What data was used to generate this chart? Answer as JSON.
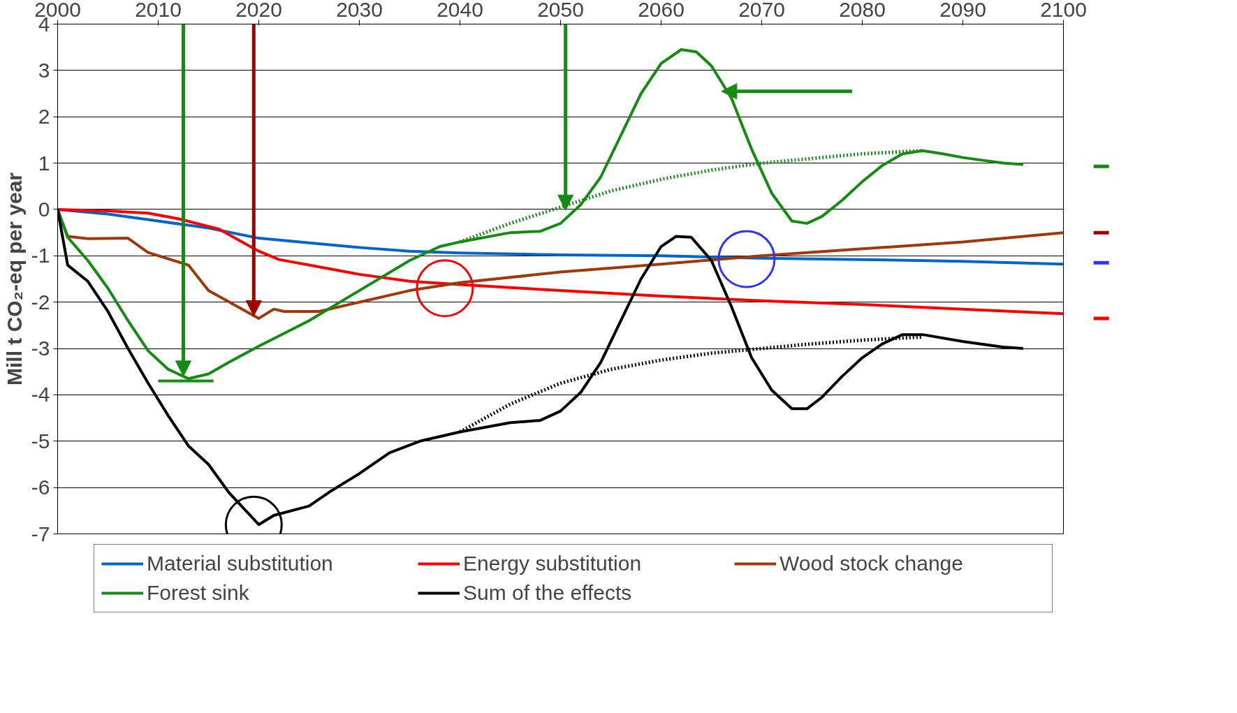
{
  "chart_data": {
    "type": "line",
    "ylabel": "Mill t CO₂-eq per year",
    "xlim": [
      2000,
      2100
    ],
    "xticks": [
      2000,
      2010,
      2020,
      2030,
      2040,
      2050,
      2060,
      2070,
      2080,
      2090,
      2100
    ],
    "ylim": [
      -7,
      4
    ],
    "yticks": [
      -7,
      -6,
      -5,
      -4,
      -3,
      -2,
      -1,
      0,
      1,
      2,
      3,
      4
    ],
    "grid": "y",
    "legend": "bottom",
    "line_style": "solid",
    "marker": "none",
    "series": [
      {
        "name": "Material substitution",
        "color": "#0066cc",
        "x": [
          2000,
          2005,
          2010,
          2015,
          2020,
          2025,
          2030,
          2035,
          2040,
          2050,
          2060,
          2070,
          2080,
          2090,
          2100
        ],
        "values": [
          0,
          -0.1,
          -0.25,
          -0.4,
          -0.62,
          -0.72,
          -0.82,
          -0.9,
          -0.94,
          -0.98,
          -1.0,
          -1.05,
          -1.08,
          -1.12,
          -1.18
        ]
      },
      {
        "name": "Energy substitution",
        "color": "#ff0000",
        "x": [
          2000,
          2005,
          2009,
          2012,
          2016,
          2020,
          2022,
          2025,
          2030,
          2035,
          2040,
          2050,
          2060,
          2070,
          2080,
          2090,
          2100
        ],
        "values": [
          0,
          -0.03,
          -0.08,
          -0.2,
          -0.42,
          -0.9,
          -1.08,
          -1.2,
          -1.4,
          -1.55,
          -1.62,
          -1.75,
          -1.87,
          -1.97,
          -2.05,
          -2.15,
          -2.25
        ]
      },
      {
        "name": "Wood stock change",
        "color": "#a0380a",
        "x": [
          2000,
          2001,
          2003,
          2007,
          2009,
          2013,
          2015,
          2020,
          2021.5,
          2022.5,
          2026,
          2030,
          2035,
          2040,
          2050,
          2060,
          2070,
          2080,
          2090,
          2100
        ],
        "values": [
          0,
          -0.58,
          -0.63,
          -0.62,
          -0.93,
          -1.2,
          -1.75,
          -2.35,
          -2.15,
          -2.2,
          -2.2,
          -2.0,
          -1.75,
          -1.58,
          -1.35,
          -1.18,
          -1.0,
          -0.85,
          -0.7,
          -0.5
        ]
      },
      {
        "name": "Forest sink",
        "color": "#148c14",
        "x": [
          2000,
          2001,
          2003,
          2005,
          2007,
          2009,
          2011,
          2013,
          2015,
          2017,
          2020,
          2025,
          2030,
          2035,
          2038,
          2040,
          2045,
          2048,
          2050,
          2052,
          2054,
          2056,
          2058,
          2060,
          2062,
          2063.5,
          2065,
          2067,
          2069,
          2071,
          2073,
          2074.5,
          2076,
          2078,
          2080,
          2082,
          2084,
          2086,
          2088,
          2090,
          2094,
          2096
        ],
        "values": [
          0,
          -0.6,
          -1.1,
          -1.7,
          -2.4,
          -3.05,
          -3.45,
          -3.65,
          -3.55,
          -3.3,
          -2.95,
          -2.4,
          -1.75,
          -1.1,
          -0.8,
          -0.7,
          -0.5,
          -0.47,
          -0.3,
          0.1,
          0.7,
          1.6,
          2.5,
          3.15,
          3.45,
          3.4,
          3.1,
          2.4,
          1.3,
          0.35,
          -0.25,
          -0.3,
          -0.15,
          0.2,
          0.6,
          0.95,
          1.2,
          1.27,
          1.2,
          1.12,
          1.0,
          0.97
        ]
      },
      {
        "color": "#148c14",
        "line_style": "dotted",
        "x": [
          2040,
          2045,
          2050,
          2055,
          2060,
          2065,
          2070,
          2075,
          2080,
          2086
        ],
        "values": [
          -0.7,
          -0.3,
          0.05,
          0.4,
          0.65,
          0.85,
          1.0,
          1.1,
          1.2,
          1.27
        ]
      },
      {
        "name": "Sum of the effects",
        "color": "#000000",
        "x": [
          2000,
          2001,
          2003,
          2005,
          2007,
          2009,
          2011,
          2013,
          2015,
          2017,
          2020,
          2021.5,
          2025,
          2027,
          2030,
          2033,
          2036,
          2040,
          2045,
          2048,
          2050,
          2052,
          2054,
          2056,
          2058,
          2060,
          2061.5,
          2063,
          2065,
          2067,
          2069,
          2071,
          2073,
          2074.5,
          2076,
          2078,
          2080,
          2082,
          2084,
          2086,
          2090,
          2094,
          2096
        ],
        "values": [
          0,
          -1.2,
          -1.55,
          -2.2,
          -3.0,
          -3.75,
          -4.45,
          -5.1,
          -5.5,
          -6.1,
          -6.8,
          -6.6,
          -6.4,
          -6.1,
          -5.7,
          -5.25,
          -5.0,
          -4.8,
          -4.6,
          -4.55,
          -4.35,
          -3.95,
          -3.3,
          -2.4,
          -1.5,
          -0.8,
          -0.58,
          -0.6,
          -1.1,
          -2.1,
          -3.2,
          -3.9,
          -4.3,
          -4.3,
          -4.05,
          -3.6,
          -3.2,
          -2.9,
          -2.7,
          -2.7,
          -2.85,
          -2.97,
          -3.0
        ]
      },
      {
        "color": "#148c14",
        "x": [
          2010,
          2015.5
        ],
        "values": [
          -3.7,
          -3.7
        ]
      },
      {
        "color": "#000000",
        "line_style": "dotted",
        "x": [
          2040,
          2045,
          2050,
          2055,
          2060,
          2065,
          2070,
          2075,
          2080,
          2086
        ],
        "values": [
          -4.8,
          -4.2,
          -3.75,
          -3.45,
          -3.25,
          -3.1,
          -3.0,
          -2.9,
          -2.82,
          -2.75
        ]
      }
    ]
  }
}
